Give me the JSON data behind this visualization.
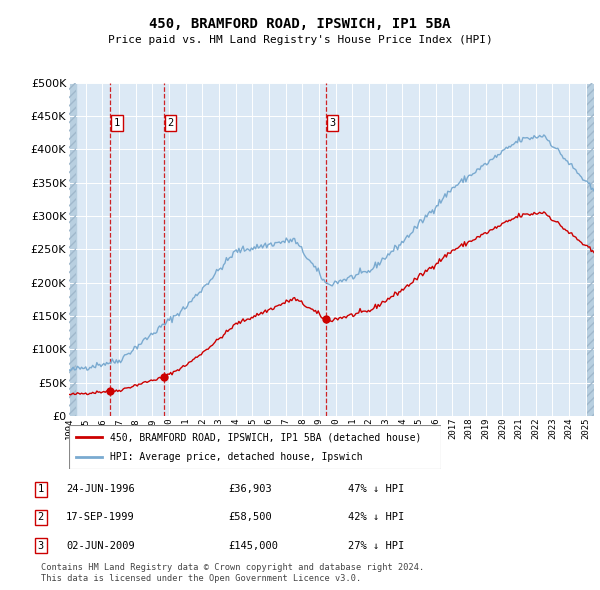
{
  "title": "450, BRAMFORD ROAD, IPSWICH, IP1 5BA",
  "subtitle": "Price paid vs. HM Land Registry's House Price Index (HPI)",
  "background_color": "#ffffff",
  "plot_bg_color": "#dce9f5",
  "hatch_color": "#b8cfe0",
  "grid_color": "#ffffff",
  "red_line_color": "#cc0000",
  "blue_line_color": "#7aaad0",
  "sale_marker_color": "#cc0000",
  "vline_color": "#cc0000",
  "ylim": [
    0,
    500000
  ],
  "yticks": [
    0,
    50000,
    100000,
    150000,
    200000,
    250000,
    300000,
    350000,
    400000,
    450000,
    500000
  ],
  "ytick_labels": [
    "£0",
    "£50K",
    "£100K",
    "£150K",
    "£200K",
    "£250K",
    "£300K",
    "£350K",
    "£400K",
    "£450K",
    "£500K"
  ],
  "xmin_year": 1994,
  "xmax_year": 2025.5,
  "xtick_years": [
    1994,
    1995,
    1996,
    1997,
    1998,
    1999,
    2000,
    2001,
    2002,
    2003,
    2004,
    2005,
    2006,
    2007,
    2008,
    2009,
    2010,
    2011,
    2012,
    2013,
    2014,
    2015,
    2016,
    2017,
    2018,
    2019,
    2020,
    2021,
    2022,
    2023,
    2024,
    2025
  ],
  "sale_dates": [
    1996.48,
    1999.71,
    2009.42
  ],
  "sale_prices": [
    36903,
    58500,
    145000
  ],
  "sale_numbers": [
    "1",
    "2",
    "3"
  ],
  "legend_line1": "450, BRAMFORD ROAD, IPSWICH, IP1 5BA (detached house)",
  "legend_line2": "HPI: Average price, detached house, Ipswich",
  "table_rows": [
    [
      "1",
      "24-JUN-1996",
      "£36,903",
      "47% ↓ HPI"
    ],
    [
      "2",
      "17-SEP-1999",
      "£58,500",
      "42% ↓ HPI"
    ],
    [
      "3",
      "02-JUN-2009",
      "£145,000",
      "27% ↓ HPI"
    ]
  ],
  "footnote": "Contains HM Land Registry data © Crown copyright and database right 2024.\nThis data is licensed under the Open Government Licence v3.0."
}
